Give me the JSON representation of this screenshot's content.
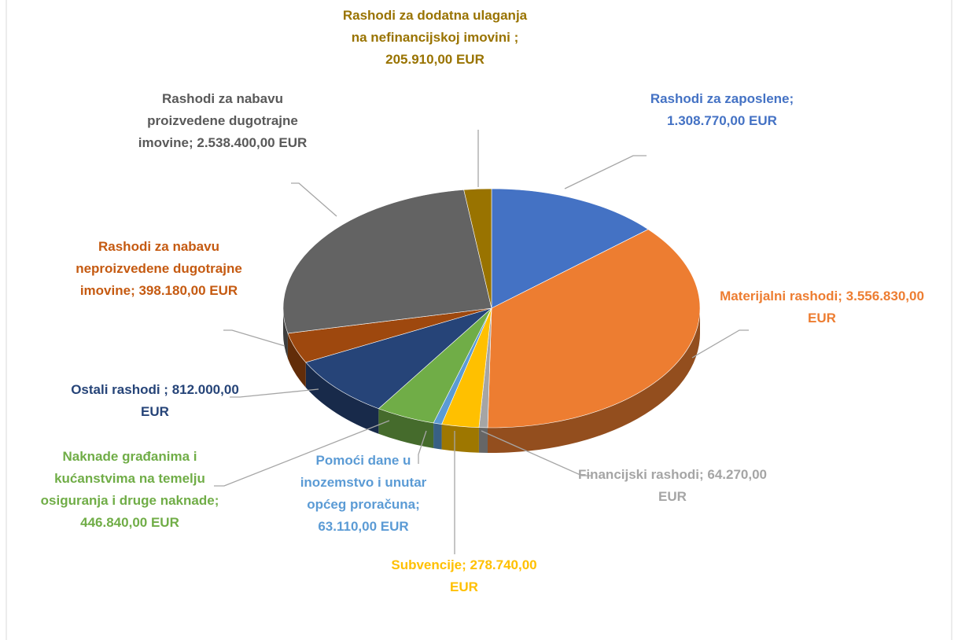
{
  "chart_data": {
    "type": "pie3d",
    "categories": [
      "Rashodi za zaposlene;",
      "Materijalni rashodi;",
      "Financijski rashodi;",
      "Subvencije;",
      "Pomoći dane u inozemstvo i unutar općeg proračuna;",
      "Naknade građanima i kućanstvima na temelju osiguranja i druge naknade;",
      "Ostali rashodi ;",
      "Rashodi za nabavu neproizvedene dugotrajne imovine;",
      "Rashodi za nabavu proizvedene dugotrajne imovine;",
      "Rashodi za dodatna ulaganja na nefinancijskoj imovini ;"
    ],
    "values": [
      1308770,
      3556830,
      64270,
      278740,
      63110,
      446840,
      812000,
      398180,
      2538400,
      205910
    ],
    "value_labels": [
      "1.308.770,00 EUR",
      "3.556.830,00 EUR",
      "64.270,00 EUR",
      "278.740,00 EUR",
      "63.110,00 EUR",
      "446.840,00 EUR",
      "812.000,00 EUR",
      "398.180,00 EUR",
      "2.538.400,00 EUR",
      "205.910,00 EUR"
    ],
    "colors": [
      "#4472c4",
      "#ed7d31",
      "#a5a5a5",
      "#ffc000",
      "#5b9bd5",
      "#70ad47",
      "#264478",
      "#9e480e",
      "#636363",
      "#997300"
    ]
  }
}
